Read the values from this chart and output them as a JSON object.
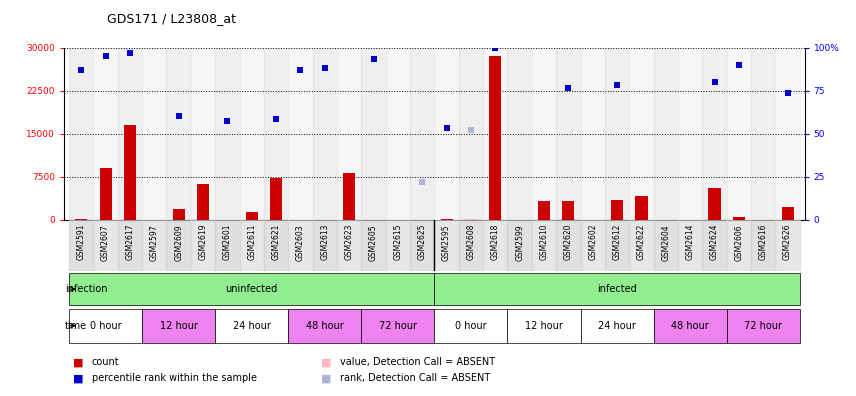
{
  "title": "GDS171 / L23808_at",
  "samples": [
    "GSM2591",
    "GSM2607",
    "GSM2617",
    "GSM2597",
    "GSM2609",
    "GSM2619",
    "GSM2601",
    "GSM2611",
    "GSM2621",
    "GSM2603",
    "GSM2613",
    "GSM2623",
    "GSM2605",
    "GSM2615",
    "GSM2625",
    "GSM2595",
    "GSM2608",
    "GSM2618",
    "GSM2599",
    "GSM2610",
    "GSM2620",
    "GSM2602",
    "GSM2612",
    "GSM2622",
    "GSM2604",
    "GSM2614",
    "GSM2624",
    "GSM2606",
    "GSM2616",
    "GSM2626"
  ],
  "counts": [
    200,
    9000,
    16500,
    0,
    1800,
    6200,
    0,
    1300,
    7300,
    0,
    0,
    8100,
    0,
    0,
    0,
    200,
    200,
    28500,
    0,
    3200,
    3200,
    0,
    3500,
    4200,
    0,
    0,
    5500,
    400,
    0,
    2200
  ],
  "counts_absent": [
    false,
    false,
    false,
    false,
    false,
    false,
    false,
    false,
    false,
    false,
    false,
    false,
    false,
    false,
    false,
    false,
    true,
    false,
    false,
    false,
    false,
    false,
    false,
    false,
    false,
    false,
    false,
    false,
    false,
    false
  ],
  "ranks": [
    26000,
    28500,
    29000,
    0,
    18000,
    0,
    17200,
    0,
    17500,
    26000,
    26500,
    0,
    28000,
    0,
    0,
    16000,
    0,
    30000,
    0,
    0,
    23000,
    0,
    23500,
    0,
    0,
    0,
    24000,
    27000,
    0,
    22000
  ],
  "rank_absent_vals": [
    0,
    0,
    0,
    0,
    0,
    0,
    0,
    0,
    0,
    0,
    0,
    0,
    0,
    0,
    6500,
    0,
    15700,
    0,
    0,
    0,
    0,
    0,
    0,
    0,
    0,
    0,
    0,
    0,
    0,
    0
  ],
  "infection_groups": [
    {
      "label": "uninfected",
      "start": 0,
      "end": 15,
      "color": "#90ee90"
    },
    {
      "label": "infected",
      "start": 15,
      "end": 30,
      "color": "#90ee90"
    }
  ],
  "time_groups": [
    {
      "label": "0 hour",
      "start": 0,
      "end": 3,
      "color": "#ffffff"
    },
    {
      "label": "12 hour",
      "start": 3,
      "end": 6,
      "color": "#ee82ee"
    },
    {
      "label": "24 hour",
      "start": 6,
      "end": 9,
      "color": "#ffffff"
    },
    {
      "label": "48 hour",
      "start": 9,
      "end": 12,
      "color": "#ee82ee"
    },
    {
      "label": "72 hour",
      "start": 12,
      "end": 15,
      "color": "#ee82ee"
    },
    {
      "label": "0 hour",
      "start": 15,
      "end": 18,
      "color": "#ffffff"
    },
    {
      "label": "12 hour",
      "start": 18,
      "end": 21,
      "color": "#ffffff"
    },
    {
      "label": "24 hour",
      "start": 21,
      "end": 24,
      "color": "#ffffff"
    },
    {
      "label": "48 hour",
      "start": 24,
      "end": 27,
      "color": "#ee82ee"
    },
    {
      "label": "72 hour",
      "start": 27,
      "end": 30,
      "color": "#ee82ee"
    }
  ],
  "ylim_left": [
    0,
    30000
  ],
  "yticks_left": [
    0,
    7500,
    15000,
    22500,
    30000
  ],
  "ytick_labels_left": [
    "0",
    "7500",
    "15000",
    "22500",
    "30000"
  ],
  "yticks_right": [
    0,
    25,
    50,
    75,
    100
  ],
  "ytick_labels_right": [
    "0",
    "25",
    "50",
    "75",
    "100%"
  ],
  "bar_color": "#cc0000",
  "bar_absent_color": "#ffb6c1",
  "rank_color": "#0000cd",
  "rank_absent_color": "#aab4d8",
  "bg_color": "#ffffff",
  "fig_legend_items": [
    {
      "color": "#cc0000",
      "label": "count"
    },
    {
      "color": "#0000cd",
      "label": "percentile rank within the sample"
    },
    {
      "color": "#ffb6c1",
      "label": "value, Detection Call = ABSENT"
    },
    {
      "color": "#aab4d8",
      "label": "rank, Detection Call = ABSENT"
    }
  ]
}
